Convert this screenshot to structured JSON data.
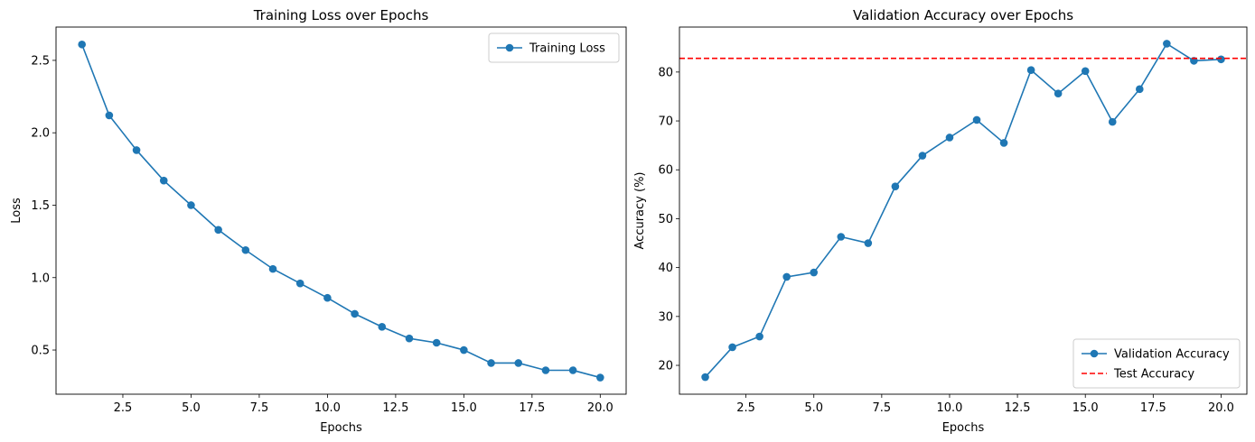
{
  "chart_data": [
    {
      "type": "line",
      "title": "Training Loss over Epochs",
      "xlabel": "Epochs",
      "ylabel": "Loss",
      "xlim": [
        0.05,
        20.95
      ],
      "ylim": [
        0.195,
        2.73
      ],
      "xticks": [
        2.5,
        5.0,
        7.5,
        10.0,
        12.5,
        15.0,
        17.5,
        20.0
      ],
      "xtick_labels": [
        "2.5",
        "5.0",
        "7.5",
        "10.0",
        "12.5",
        "15.0",
        "17.5",
        "20.0"
      ],
      "yticks": [
        0.5,
        1.0,
        1.5,
        2.0,
        2.5
      ],
      "ytick_labels": [
        "0.5",
        "1.0",
        "1.5",
        "2.0",
        "2.5"
      ],
      "grid": false,
      "legend_position": "top-right",
      "x": [
        1,
        2,
        3,
        4,
        5,
        6,
        7,
        8,
        9,
        10,
        11,
        12,
        13,
        14,
        15,
        16,
        17,
        18,
        19,
        20
      ],
      "series": [
        {
          "name": "Training Loss",
          "color": "#1f77b4",
          "style": "line-marker",
          "values": [
            2.61,
            2.12,
            1.88,
            1.67,
            1.5,
            1.33,
            1.19,
            1.06,
            0.96,
            0.86,
            0.75,
            0.66,
            0.58,
            0.55,
            0.5,
            0.41,
            0.41,
            0.36,
            0.36,
            0.31
          ]
        }
      ]
    },
    {
      "type": "line",
      "title": "Validation Accuracy over Epochs",
      "xlabel": "Epochs",
      "ylabel": "Accuracy (%)",
      "xlim": [
        0.05,
        20.95
      ],
      "ylim": [
        14.1,
        89.2
      ],
      "xticks": [
        2.5,
        5.0,
        7.5,
        10.0,
        12.5,
        15.0,
        17.5,
        20.0
      ],
      "xtick_labels": [
        "2.5",
        "5.0",
        "7.5",
        "10.0",
        "12.5",
        "15.0",
        "17.5",
        "20.0"
      ],
      "yticks": [
        20,
        30,
        40,
        50,
        60,
        70,
        80
      ],
      "ytick_labels": [
        "20",
        "30",
        "40",
        "50",
        "60",
        "70",
        "80"
      ],
      "grid": false,
      "legend_position": "bottom-right",
      "x": [
        1,
        2,
        3,
        4,
        5,
        6,
        7,
        8,
        9,
        10,
        11,
        12,
        13,
        14,
        15,
        16,
        17,
        18,
        19,
        20
      ],
      "series": [
        {
          "name": "Validation Accuracy",
          "color": "#1f77b4",
          "style": "line-marker",
          "values": [
            17.6,
            23.7,
            25.9,
            38.1,
            39.0,
            46.3,
            45.0,
            56.6,
            62.9,
            66.6,
            70.2,
            65.5,
            80.4,
            75.6,
            80.2,
            69.8,
            76.5,
            85.8,
            82.3,
            82.6
          ]
        },
        {
          "name": "Test Accuracy",
          "color": "#ff0000",
          "style": "dashed-hline",
          "value": 82.8
        }
      ]
    }
  ]
}
